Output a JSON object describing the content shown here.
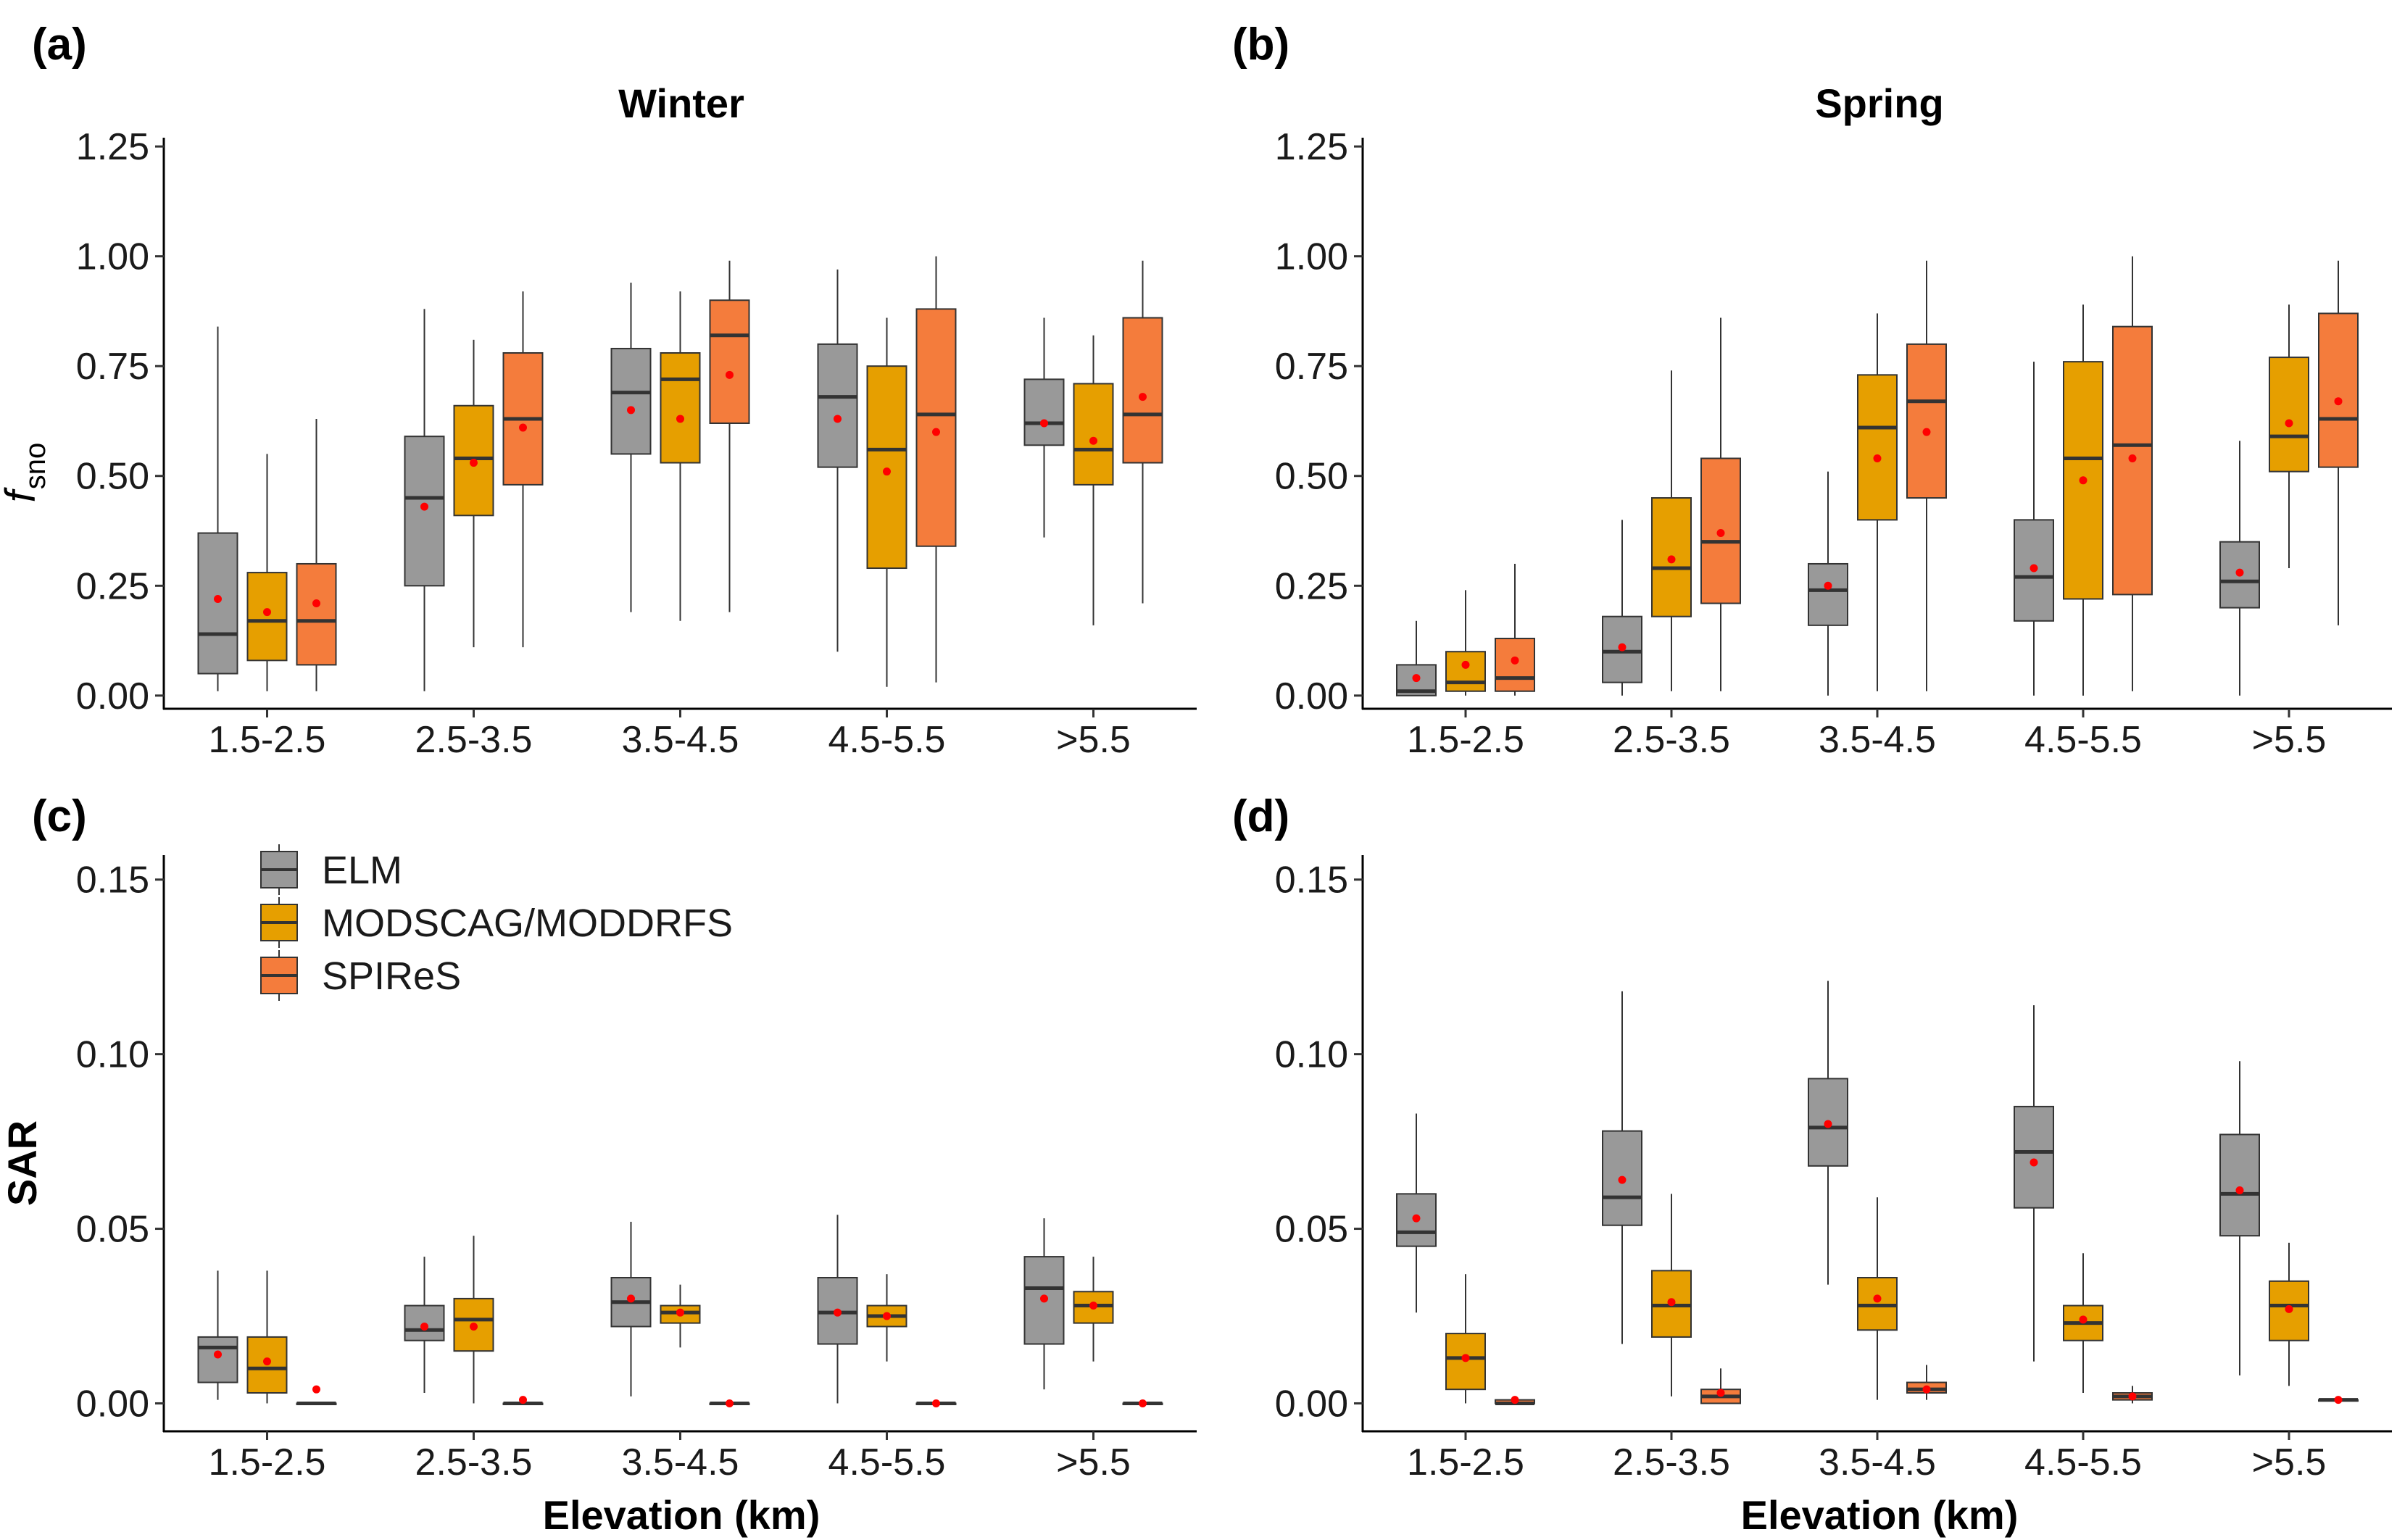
{
  "figure": {
    "colors": {
      "ELM": "#999999",
      "MODSCAG/MODDRFS": "#E69F00",
      "SPIReS": "#F47C3C",
      "mean_dot": "#FF0000",
      "median": "#333333"
    },
    "legend": [
      {
        "label": "ELM",
        "color": "#999999"
      },
      {
        "label": "MODSCAG/MODDRFS",
        "color": "#E69F00"
      },
      {
        "label": "SPIReS",
        "color": "#F47C3C"
      }
    ]
  },
  "chart_data": [
    {
      "id": "a",
      "panel_label": "(a)",
      "type": "boxplot",
      "title": "Winter",
      "ylabel": "f",
      "ylabel_sub": "sno",
      "xlabel": "",
      "ylim": [
        -0.03,
        1.27
      ],
      "yticks": [
        "0.00",
        "0.25",
        "0.50",
        "0.75",
        "1.00",
        "1.25"
      ],
      "categories": [
        "1.5-2.5",
        "2.5-3.5",
        "3.5-4.5",
        "4.5-5.5",
        ">5.5"
      ],
      "series": [
        {
          "name": "ELM",
          "boxes": [
            {
              "min": 0.01,
              "q1": 0.05,
              "median": 0.14,
              "q3": 0.37,
              "max": 0.84,
              "mean": 0.22
            },
            {
              "min": 0.01,
              "q1": 0.25,
              "median": 0.45,
              "q3": 0.59,
              "max": 0.88,
              "mean": 0.43
            },
            {
              "min": 0.19,
              "q1": 0.55,
              "median": 0.69,
              "q3": 0.79,
              "max": 0.94,
              "mean": 0.65
            },
            {
              "min": 0.1,
              "q1": 0.52,
              "median": 0.68,
              "q3": 0.8,
              "max": 0.97,
              "mean": 0.63
            },
            {
              "min": 0.36,
              "q1": 0.57,
              "median": 0.62,
              "q3": 0.72,
              "max": 0.86,
              "mean": 0.62
            }
          ]
        },
        {
          "name": "MODSCAG/MODDRFS",
          "boxes": [
            {
              "min": 0.01,
              "q1": 0.08,
              "median": 0.17,
              "q3": 0.28,
              "max": 0.55,
              "mean": 0.19
            },
            {
              "min": 0.11,
              "q1": 0.41,
              "median": 0.54,
              "q3": 0.66,
              "max": 0.81,
              "mean": 0.53
            },
            {
              "min": 0.17,
              "q1": 0.53,
              "median": 0.72,
              "q3": 0.78,
              "max": 0.92,
              "mean": 0.63
            },
            {
              "min": 0.02,
              "q1": 0.29,
              "median": 0.56,
              "q3": 0.75,
              "max": 0.86,
              "mean": 0.51
            },
            {
              "min": 0.16,
              "q1": 0.48,
              "median": 0.56,
              "q3": 0.71,
              "max": 0.82,
              "mean": 0.58
            }
          ]
        },
        {
          "name": "SPIReS",
          "boxes": [
            {
              "min": 0.01,
              "q1": 0.07,
              "median": 0.17,
              "q3": 0.3,
              "max": 0.63,
              "mean": 0.21
            },
            {
              "min": 0.11,
              "q1": 0.48,
              "median": 0.63,
              "q3": 0.78,
              "max": 0.92,
              "mean": 0.61
            },
            {
              "min": 0.19,
              "q1": 0.62,
              "median": 0.82,
              "q3": 0.9,
              "max": 0.99,
              "mean": 0.73
            },
            {
              "min": 0.03,
              "q1": 0.34,
              "median": 0.64,
              "q3": 0.88,
              "max": 1.0,
              "mean": 0.6
            },
            {
              "min": 0.21,
              "q1": 0.53,
              "median": 0.64,
              "q3": 0.86,
              "max": 0.99,
              "mean": 0.68
            }
          ]
        }
      ]
    },
    {
      "id": "b",
      "panel_label": "(b)",
      "type": "boxplot",
      "title": "Spring",
      "ylabel": "",
      "xlabel": "",
      "ylim": [
        -0.03,
        1.27
      ],
      "yticks": [
        "0.00",
        "0.25",
        "0.50",
        "0.75",
        "1.00",
        "1.25"
      ],
      "categories": [
        "1.5-2.5",
        "2.5-3.5",
        "3.5-4.5",
        "4.5-5.5",
        ">5.5"
      ],
      "series": [
        {
          "name": "ELM",
          "boxes": [
            {
              "min": 0.0,
              "q1": 0.0,
              "median": 0.01,
              "q3": 0.07,
              "max": 0.17,
              "mean": 0.04
            },
            {
              "min": 0.0,
              "q1": 0.03,
              "median": 0.1,
              "q3": 0.18,
              "max": 0.4,
              "mean": 0.11
            },
            {
              "min": 0.0,
              "q1": 0.16,
              "median": 0.24,
              "q3": 0.3,
              "max": 0.51,
              "mean": 0.25
            },
            {
              "min": 0.0,
              "q1": 0.17,
              "median": 0.27,
              "q3": 0.4,
              "max": 0.76,
              "mean": 0.29
            },
            {
              "min": 0.0,
              "q1": 0.2,
              "median": 0.26,
              "q3": 0.35,
              "max": 0.58,
              "mean": 0.28
            }
          ]
        },
        {
          "name": "MODSCAG/MODDRFS",
          "boxes": [
            {
              "min": 0.0,
              "q1": 0.01,
              "median": 0.03,
              "q3": 0.1,
              "max": 0.24,
              "mean": 0.07
            },
            {
              "min": 0.01,
              "q1": 0.18,
              "median": 0.29,
              "q3": 0.45,
              "max": 0.74,
              "mean": 0.31
            },
            {
              "min": 0.01,
              "q1": 0.4,
              "median": 0.61,
              "q3": 0.73,
              "max": 0.87,
              "mean": 0.54
            },
            {
              "min": 0.0,
              "q1": 0.22,
              "median": 0.54,
              "q3": 0.76,
              "max": 0.89,
              "mean": 0.49
            },
            {
              "min": 0.29,
              "q1": 0.51,
              "median": 0.59,
              "q3": 0.77,
              "max": 0.89,
              "mean": 0.62
            }
          ]
        },
        {
          "name": "SPIReS",
          "boxes": [
            {
              "min": 0.0,
              "q1": 0.01,
              "median": 0.04,
              "q3": 0.13,
              "max": 0.3,
              "mean": 0.08
            },
            {
              "min": 0.01,
              "q1": 0.21,
              "median": 0.35,
              "q3": 0.54,
              "max": 0.86,
              "mean": 0.37
            },
            {
              "min": 0.01,
              "q1": 0.45,
              "median": 0.67,
              "q3": 0.8,
              "max": 0.99,
              "mean": 0.6
            },
            {
              "min": 0.01,
              "q1": 0.23,
              "median": 0.57,
              "q3": 0.84,
              "max": 1.0,
              "mean": 0.54
            },
            {
              "min": 0.16,
              "q1": 0.52,
              "median": 0.63,
              "q3": 0.87,
              "max": 0.99,
              "mean": 0.67
            }
          ]
        }
      ]
    },
    {
      "id": "c",
      "panel_label": "(c)",
      "type": "boxplot",
      "title": "",
      "ylabel": "SAR",
      "xlabel": "Elevation (km)",
      "ylim": [
        -0.008,
        0.157
      ],
      "yticks": [
        "0.00",
        "0.05",
        "0.10",
        "0.15"
      ],
      "categories": [
        "1.5-2.5",
        "2.5-3.5",
        "3.5-4.5",
        "4.5-5.5",
        ">5.5"
      ],
      "legend_position": "top-left",
      "series": [
        {
          "name": "ELM",
          "boxes": [
            {
              "min": 0.001,
              "q1": 0.006,
              "median": 0.016,
              "q3": 0.019,
              "max": 0.038,
              "mean": 0.014
            },
            {
              "min": 0.003,
              "q1": 0.018,
              "median": 0.021,
              "q3": 0.028,
              "max": 0.042,
              "mean": 0.022
            },
            {
              "min": 0.002,
              "q1": 0.022,
              "median": 0.029,
              "q3": 0.036,
              "max": 0.052,
              "mean": 0.03
            },
            {
              "min": 0.0,
              "q1": 0.017,
              "median": 0.026,
              "q3": 0.036,
              "max": 0.054,
              "mean": 0.026
            },
            {
              "min": 0.004,
              "q1": 0.017,
              "median": 0.033,
              "q3": 0.042,
              "max": 0.053,
              "mean": 0.03
            }
          ]
        },
        {
          "name": "MODSCAG/MODDRFS",
          "boxes": [
            {
              "min": 0.0,
              "q1": 0.003,
              "median": 0.01,
              "q3": 0.019,
              "max": 0.038,
              "mean": 0.012
            },
            {
              "min": 0.0,
              "q1": 0.015,
              "median": 0.024,
              "q3": 0.03,
              "max": 0.048,
              "mean": 0.022
            },
            {
              "min": 0.016,
              "q1": 0.023,
              "median": 0.026,
              "q3": 0.028,
              "max": 0.034,
              "mean": 0.026
            },
            {
              "min": 0.012,
              "q1": 0.022,
              "median": 0.025,
              "q3": 0.028,
              "max": 0.037,
              "mean": 0.025
            },
            {
              "min": 0.012,
              "q1": 0.023,
              "median": 0.028,
              "q3": 0.032,
              "max": 0.042,
              "mean": 0.028
            }
          ]
        },
        {
          "name": "SPIReS",
          "boxes": [
            {
              "min": 0.0,
              "q1": 0.0,
              "median": 0.0,
              "q3": 0.0,
              "max": 0.0,
              "mean": 0.004
            },
            {
              "min": 0.0,
              "q1": 0.0,
              "median": 0.0,
              "q3": 0.0,
              "max": 0.0,
              "mean": 0.001
            },
            {
              "min": 0.0,
              "q1": 0.0,
              "median": 0.0,
              "q3": 0.0,
              "max": 0.0,
              "mean": 0.0
            },
            {
              "min": 0.0,
              "q1": 0.0,
              "median": 0.0,
              "q3": 0.0,
              "max": 0.0,
              "mean": 0.0
            },
            {
              "min": 0.0,
              "q1": 0.0,
              "median": 0.0,
              "q3": 0.0,
              "max": 0.0,
              "mean": 0.0
            }
          ]
        }
      ]
    },
    {
      "id": "d",
      "panel_label": "(d)",
      "type": "boxplot",
      "title": "",
      "ylabel": "",
      "xlabel": "Elevation (km)",
      "ylim": [
        -0.008,
        0.157
      ],
      "yticks": [
        "0.00",
        "0.05",
        "0.10",
        "0.15"
      ],
      "categories": [
        "1.5-2.5",
        "2.5-3.5",
        "3.5-4.5",
        "4.5-5.5",
        ">5.5"
      ],
      "series": [
        {
          "name": "ELM",
          "boxes": [
            {
              "min": 0.026,
              "q1": 0.045,
              "median": 0.049,
              "q3": 0.06,
              "max": 0.083,
              "mean": 0.053
            },
            {
              "min": 0.017,
              "q1": 0.051,
              "median": 0.059,
              "q3": 0.078,
              "max": 0.118,
              "mean": 0.064
            },
            {
              "min": 0.034,
              "q1": 0.068,
              "median": 0.079,
              "q3": 0.093,
              "max": 0.121,
              "mean": 0.08
            },
            {
              "min": 0.012,
              "q1": 0.056,
              "median": 0.072,
              "q3": 0.085,
              "max": 0.114,
              "mean": 0.069
            },
            {
              "min": 0.008,
              "q1": 0.048,
              "median": 0.06,
              "q3": 0.077,
              "max": 0.098,
              "mean": 0.061
            }
          ]
        },
        {
          "name": "MODSCAG/MODDRFS",
          "boxes": [
            {
              "min": 0.0,
              "q1": 0.004,
              "median": 0.013,
              "q3": 0.02,
              "max": 0.037,
              "mean": 0.013
            },
            {
              "min": 0.002,
              "q1": 0.019,
              "median": 0.028,
              "q3": 0.038,
              "max": 0.06,
              "mean": 0.029
            },
            {
              "min": 0.001,
              "q1": 0.021,
              "median": 0.028,
              "q3": 0.036,
              "max": 0.059,
              "mean": 0.03
            },
            {
              "min": 0.003,
              "q1": 0.018,
              "median": 0.023,
              "q3": 0.028,
              "max": 0.043,
              "mean": 0.024
            },
            {
              "min": 0.005,
              "q1": 0.018,
              "median": 0.028,
              "q3": 0.035,
              "max": 0.046,
              "mean": 0.027
            }
          ]
        },
        {
          "name": "SPIReS",
          "boxes": [
            {
              "min": 0.0,
              "q1": 0.0,
              "median": 0.0,
              "q3": 0.001,
              "max": 0.001,
              "mean": 0.001
            },
            {
              "min": 0.0,
              "q1": 0.0,
              "median": 0.002,
              "q3": 0.004,
              "max": 0.01,
              "mean": 0.003
            },
            {
              "min": 0.001,
              "q1": 0.003,
              "median": 0.004,
              "q3": 0.006,
              "max": 0.011,
              "mean": 0.004
            },
            {
              "min": 0.0,
              "q1": 0.001,
              "median": 0.002,
              "q3": 0.003,
              "max": 0.005,
              "mean": 0.002
            },
            {
              "min": 0.0,
              "q1": 0.001,
              "median": 0.001,
              "q3": 0.001,
              "max": 0.001,
              "mean": 0.001
            }
          ]
        }
      ]
    }
  ]
}
